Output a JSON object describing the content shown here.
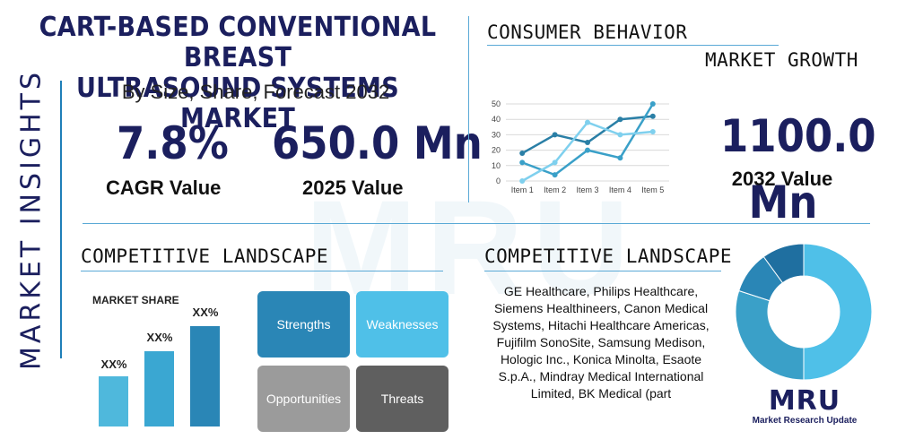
{
  "header": {
    "title_line1": "CART-BASED CONVENTIONAL BREAST",
    "title_line2": "ULTRASOUND SYSTEMS MARKET",
    "subtitle": "By Size, Share, Forecast 2032"
  },
  "side_label": "MARKET INSIGHTS",
  "watermark": "MRU",
  "stats": {
    "cagr": {
      "value": "7.8%",
      "label": "CAGR Value"
    },
    "value_2025": {
      "value": "650.0 Mn",
      "label": "2025 Value"
    },
    "value_2032": {
      "value_line1": "1100.0",
      "value_line2": "Mn",
      "label": "2032 Value"
    }
  },
  "consumer_behavior": {
    "heading": "CONSUMER BEHAVIOR"
  },
  "market_growth": {
    "heading": "MARKET GROWTH"
  },
  "competitive_left": {
    "heading": "COMPETITIVE LANDSCAPE",
    "market_share_title": "MARKET SHARE",
    "bar_labels": [
      "XX%",
      "XX%",
      "XX%"
    ],
    "swot": {
      "strengths": "Strengths",
      "weaknesses": "Weaknesses",
      "opportunities": "Opportunities",
      "threats": "Threats"
    }
  },
  "competitive_right": {
    "heading": "COMPETITIVE LANDSCAPE",
    "companies": "GE Healthcare, Philips Healthcare, Siemens Healthineers, Canon Medical Systems, Hitachi Healthcare Americas, Fujifilm SonoSite, Samsung Medison, Hologic Inc., Konica Minolta, Esaote S.p.A., Mindray Medical International Limited, BK Medical (part"
  },
  "logo": {
    "mark": "MRU",
    "tagline": "Market Research Update"
  },
  "colors": {
    "navy": "#1b1f5e",
    "blue": "#1f7fb8",
    "teal": "#3aa0c8",
    "light_blue": "#4fc0e8",
    "mid_blue": "#2a86b6",
    "gray": "#9b9b9b",
    "dark_gray": "#5f5f5f"
  },
  "chart_data": [
    {
      "type": "line",
      "categories": [
        "Item 1",
        "Item 2",
        "Item 3",
        "Item 4",
        "Item 5"
      ],
      "series": [
        {
          "values": [
            18,
            30,
            25,
            40,
            42
          ],
          "color": "#2a7fa6"
        },
        {
          "values": [
            12,
            4,
            20,
            15,
            50
          ],
          "color": "#3aa0c8"
        },
        {
          "values": [
            0,
            12,
            38,
            30,
            32
          ],
          "color": "#7fd0ee"
        }
      ],
      "ylim": [
        0,
        50
      ],
      "yticks": [
        0,
        10,
        20,
        30,
        40,
        50
      ],
      "grid": true
    },
    {
      "type": "pie",
      "donut": true,
      "values": [
        50,
        30,
        10,
        10
      ],
      "colors": [
        "#4fc0e8",
        "#3aa0c8",
        "#2a86b6",
        "#1f6fa0"
      ]
    }
  ]
}
